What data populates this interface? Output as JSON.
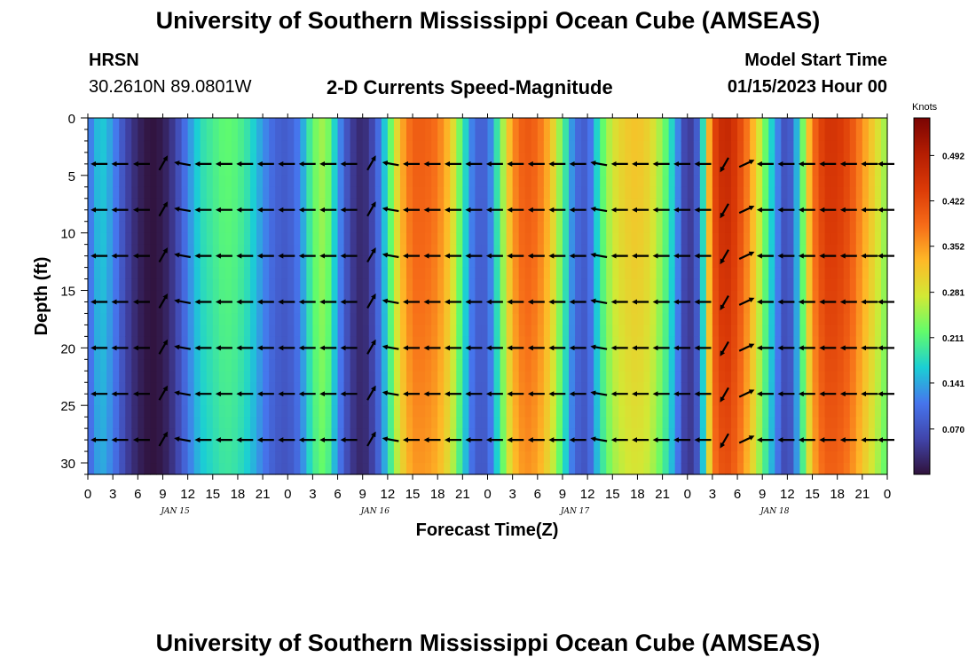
{
  "header": {
    "title_top": "University of Southern Mississippi Ocean Cube (AMSEAS)",
    "station": "HRSN",
    "coords": "30.2610N  89.0801W",
    "subtitle": "2-D Currents Speed-Magnitude",
    "model_start_label": "Model Start Time",
    "model_start_value": "01/15/2023 Hour 00",
    "title_bottom": "University of Southern Mississippi Ocean Cube (AMSEAS)"
  },
  "chart_data": {
    "type": "heatmap",
    "title": "2-D Currents Speed-Magnitude",
    "xlabel": "Forecast Time(Z)",
    "ylabel": "Depth (ft)",
    "x_range_hours": [
      0,
      96
    ],
    "y_range_ft": [
      0,
      31
    ],
    "x_ticks": [
      "0",
      "3",
      "6",
      "9",
      "12",
      "15",
      "18",
      "21",
      "0",
      "3",
      "6",
      "9",
      "12",
      "15",
      "18",
      "21",
      "0",
      "3",
      "6",
      "9",
      "12",
      "15",
      "18",
      "21",
      "0",
      "3",
      "6",
      "9",
      "12",
      "15",
      "18",
      "21",
      "0"
    ],
    "y_ticks": [
      "0",
      "5",
      "10",
      "15",
      "20",
      "25",
      "30"
    ],
    "y_tick_values": [
      0,
      5,
      10,
      15,
      20,
      25,
      30
    ],
    "date_labels": [
      {
        "label": "JAN 15",
        "hour": 10.5
      },
      {
        "label": "JAN 16",
        "hour": 34.5
      },
      {
        "label": "JAN 17",
        "hour": 58.5
      },
      {
        "label": "JAN 18",
        "hour": 82.5
      }
    ],
    "colorbar": {
      "title": "Knots",
      "ticks": [
        "0.492",
        "0.422",
        "0.352",
        "0.281",
        "0.211",
        "0.141",
        "0.070"
      ],
      "tick_values": [
        0.492,
        0.422,
        0.352,
        0.281,
        0.211,
        0.141,
        0.07
      ],
      "range": [
        0,
        0.55
      ]
    },
    "speed_profile": {
      "hours": [
        0,
        1.5,
        3,
        4.5,
        6,
        7.5,
        9,
        10.5,
        12,
        13.5,
        15,
        16.5,
        18,
        19.5,
        21,
        22.5,
        24,
        25.5,
        27,
        28.5,
        30,
        31.5,
        33,
        34.5,
        36,
        37.5,
        39,
        40.5,
        42,
        43.5,
        45,
        46.5,
        48,
        49.5,
        51,
        52.5,
        54,
        55.5,
        57,
        58.5,
        60,
        61.5,
        63,
        64.5,
        66,
        67.5,
        69,
        70.5,
        72,
        73.5,
        75,
        76.5,
        78,
        79.5,
        81,
        82.5,
        84,
        85.5,
        87,
        88.5,
        90,
        91.5,
        93,
        94.5,
        96
      ],
      "knots": [
        0.1,
        0.17,
        0.13,
        0.06,
        0.02,
        0.0,
        0.01,
        0.05,
        0.12,
        0.18,
        0.2,
        0.22,
        0.21,
        0.18,
        0.13,
        0.09,
        0.08,
        0.12,
        0.22,
        0.26,
        0.14,
        0.05,
        0.02,
        0.07,
        0.19,
        0.33,
        0.4,
        0.4,
        0.38,
        0.32,
        0.2,
        0.09,
        0.09,
        0.22,
        0.36,
        0.41,
        0.39,
        0.33,
        0.22,
        0.1,
        0.08,
        0.2,
        0.28,
        0.31,
        0.32,
        0.3,
        0.24,
        0.15,
        0.03,
        0.1,
        0.42,
        0.48,
        0.44,
        0.36,
        0.25,
        0.14,
        0.05,
        0.18,
        0.38,
        0.45,
        0.45,
        0.42,
        0.36,
        0.3,
        0.24
      ]
    },
    "arrow_columns_hours": [
      1.5,
      4,
      6.6,
      9,
      11.5,
      14,
      16.5,
      19,
      21.5,
      24,
      26.5,
      29,
      31.5,
      34,
      36.5,
      39,
      41.5,
      44,
      46.5,
      49,
      51.5,
      54,
      56.5,
      59,
      61.5,
      64,
      66.5,
      69,
      71.5,
      74,
      76.5,
      79,
      81.5,
      84,
      86.5,
      89,
      91.5,
      94,
      96
    ],
    "arrow_rows_ft": [
      4,
      8,
      12,
      16,
      20,
      24,
      28
    ],
    "arrow_angles_deg": [
      180,
      180,
      180,
      60,
      170,
      180,
      180,
      180,
      180,
      180,
      180,
      180,
      180,
      60,
      170,
      180,
      180,
      180,
      180,
      180,
      180,
      180,
      180,
      180,
      170,
      180,
      180,
      180,
      180,
      180,
      240,
      25,
      180,
      180,
      180,
      180,
      180,
      180,
      180
    ]
  }
}
